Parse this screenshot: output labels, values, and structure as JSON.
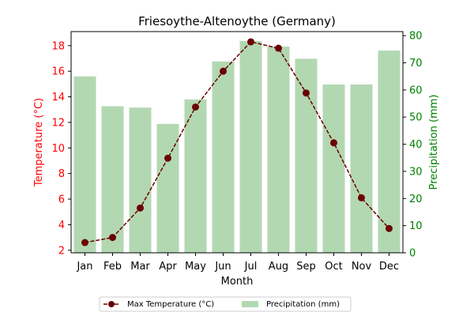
{
  "chart_data": {
    "type": "bar",
    "title": "Friesoythe-Altenoythe (Germany)",
    "xlabel": "Month",
    "ylabel_left": "Temperature (°C)",
    "ylabel_right": "Precipitation (mm)",
    "categories": [
      "Jan",
      "Feb",
      "Mar",
      "Apr",
      "May",
      "Jun",
      "Jul",
      "Aug",
      "Sep",
      "Oct",
      "Nov",
      "Dec"
    ],
    "left_axis": {
      "ylim": [
        1.8,
        19.1
      ],
      "ticks": [
        2,
        4,
        6,
        8,
        10,
        12,
        14,
        16,
        18
      ]
    },
    "right_axis": {
      "ylim": [
        0,
        81.5
      ],
      "ticks": [
        0,
        10,
        20,
        30,
        40,
        50,
        60,
        70,
        80
      ]
    },
    "series": [
      {
        "name": "Max Temperature (°C)",
        "kind": "line",
        "axis": "left",
        "color": "#6b0000",
        "values": [
          2.6,
          3.0,
          5.3,
          9.2,
          13.2,
          16.0,
          18.3,
          17.8,
          14.3,
          10.4,
          6.1,
          3.7
        ]
      },
      {
        "name": "Precipitation (mm)",
        "kind": "bar",
        "axis": "right",
        "color": "#b2d8b2",
        "values": [
          65,
          54,
          53.5,
          47.5,
          56.5,
          70.5,
          78,
          76,
          71.5,
          62,
          62,
          74.5
        ]
      }
    ],
    "grid": false,
    "legend_position": "bottom-center",
    "colors": {
      "left_axis": "#ff0000",
      "right_axis": "#008000"
    }
  }
}
